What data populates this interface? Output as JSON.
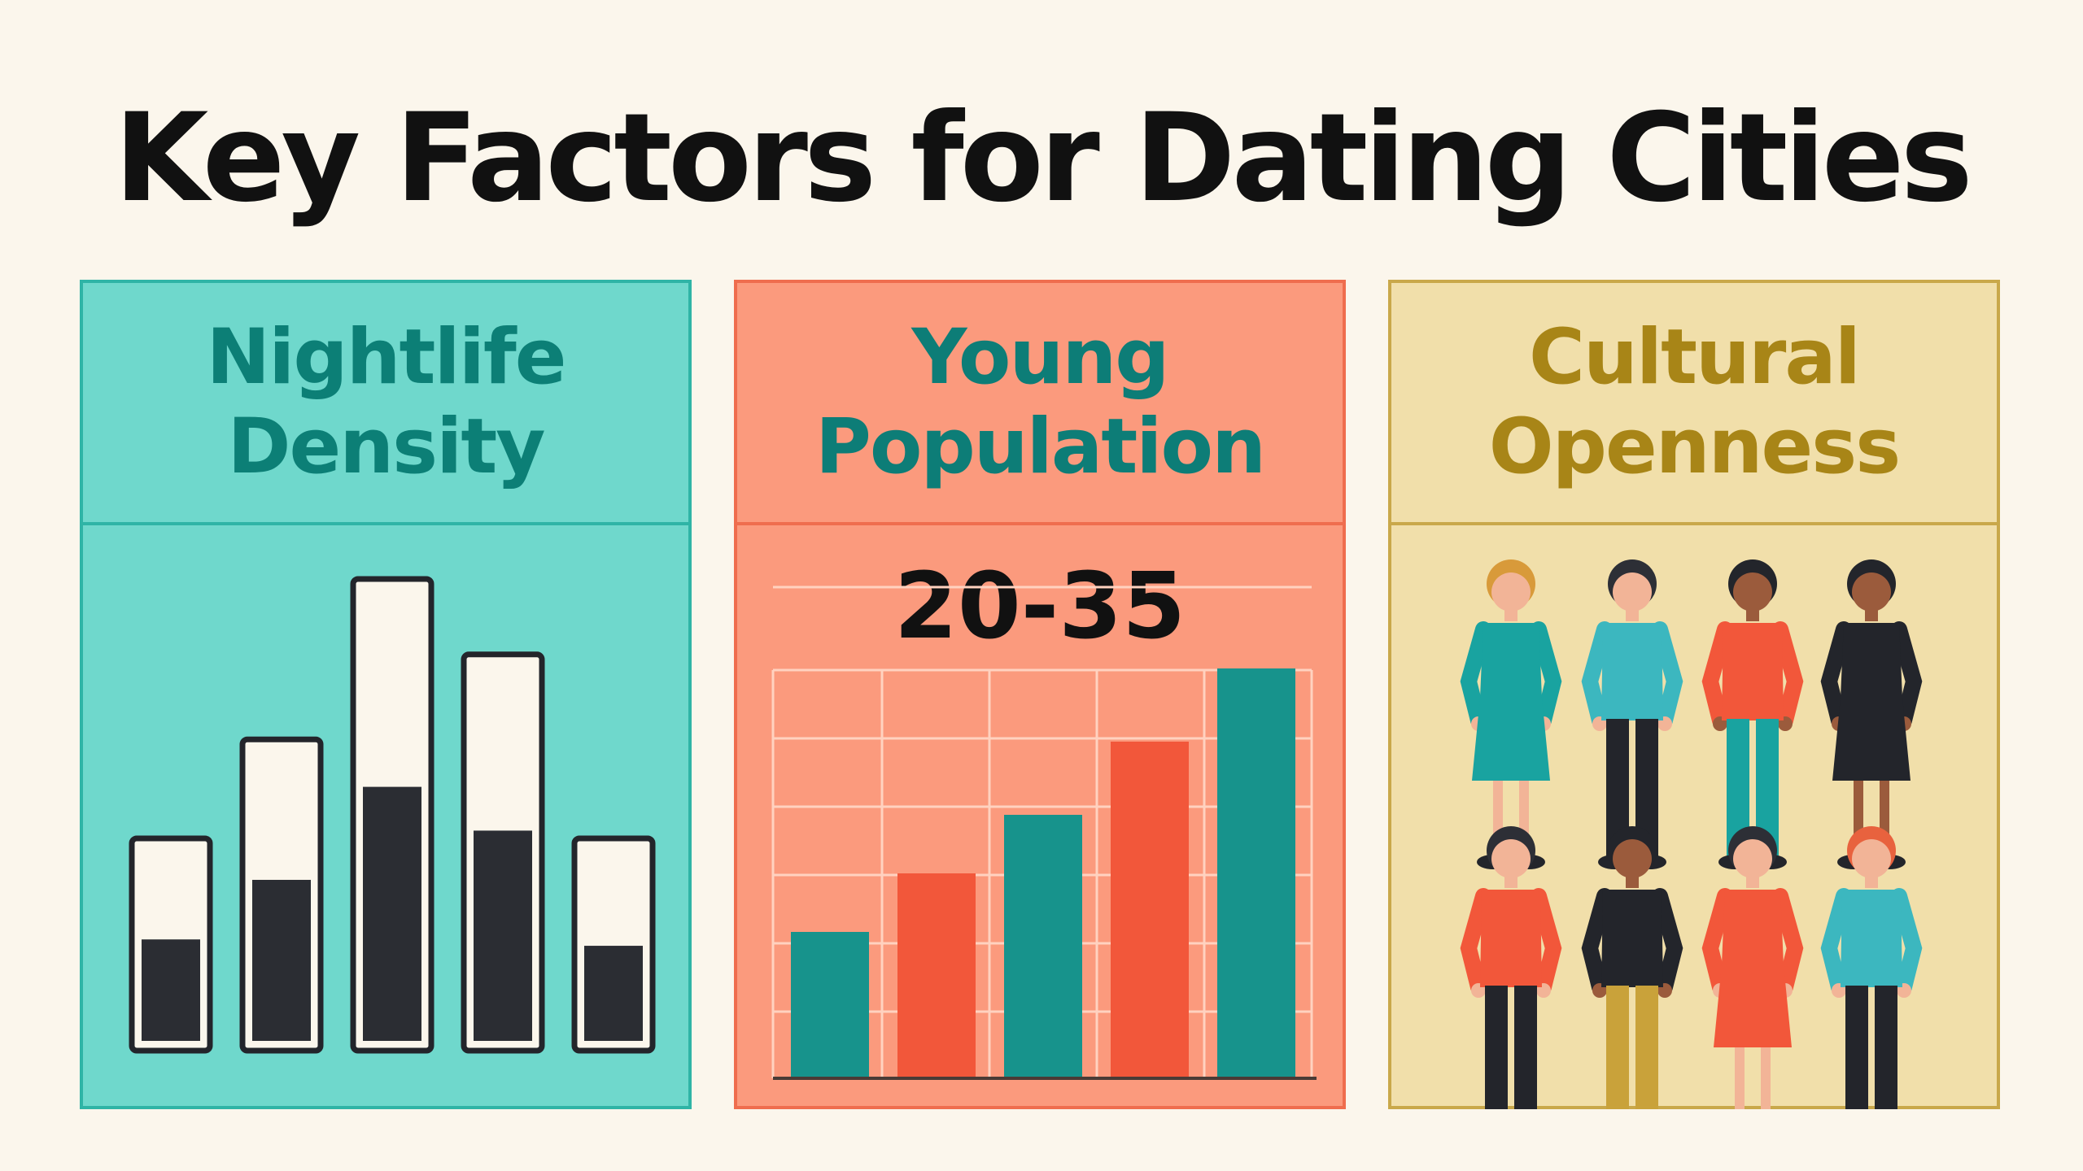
{
  "title": "Key Factors for Dating Cities",
  "panels": [
    {
      "heading_line1": "Nightlife",
      "heading_line2": "Density",
      "chart_data": {
        "type": "bar",
        "style": "fill-level meters",
        "levels": [
          0.57,
          0.58,
          0.58,
          0.58,
          0.54
        ],
        "heights": [
          0.45,
          0.66,
          1.0,
          0.84,
          0.45
        ]
      }
    },
    {
      "heading_line1": "Young",
      "heading_line2": "Population",
      "age_range": "20-35",
      "chart_data": {
        "type": "bar",
        "values": [
          1.0,
          1.4,
          1.8,
          2.3,
          2.8
        ],
        "colors": [
          "#17938c",
          "#f2573a",
          "#17938c",
          "#f2573a",
          "#17938c"
        ],
        "grid": true
      }
    },
    {
      "heading_line1": "Cultural",
      "heading_line2": "Openness",
      "people": [
        {
          "name": "person-woman-teal-dress",
          "shirt": "#19a3a0",
          "legs": "#19a3a0",
          "skin": "#f2b497",
          "hair": "#d89a3a",
          "dress": true
        },
        {
          "name": "person-man-arms-crossed",
          "shirt": "#3cb7bf",
          "legs": "#23252b",
          "skin": "#f2b497",
          "hair": "#2d2f36",
          "dress": false
        },
        {
          "name": "person-man-orange-shirt",
          "shirt": "#f2573a",
          "legs": "#19a3a0",
          "skin": "#9b5b3c",
          "hair": "#23252b",
          "dress": false
        },
        {
          "name": "person-woman-black-dress",
          "shirt": "#23252b",
          "legs": "#23252b",
          "skin": "#9b5b3c",
          "hair": "#23252b",
          "dress": true
        },
        {
          "name": "person-man-orange-walking",
          "shirt": "#f2573a",
          "legs": "#23252b",
          "skin": "#f2b497",
          "hair": "#2d2f36",
          "dress": false
        },
        {
          "name": "person-man-black-shirt",
          "shirt": "#23252b",
          "legs": "#c9a23a",
          "skin": "#9b5b3c",
          "hair": "#23252b",
          "dress": false
        },
        {
          "name": "person-woman-orange-dress",
          "shirt": "#f2573a",
          "legs": "#f2573a",
          "skin": "#f2b497",
          "hair": "#2d2f36",
          "dress": true
        },
        {
          "name": "person-man-teal-shirt",
          "shirt": "#3cb7bf",
          "legs": "#23252b",
          "skin": "#f2b497",
          "hair": "#e8623e",
          "dress": false
        }
      ]
    }
  ]
}
